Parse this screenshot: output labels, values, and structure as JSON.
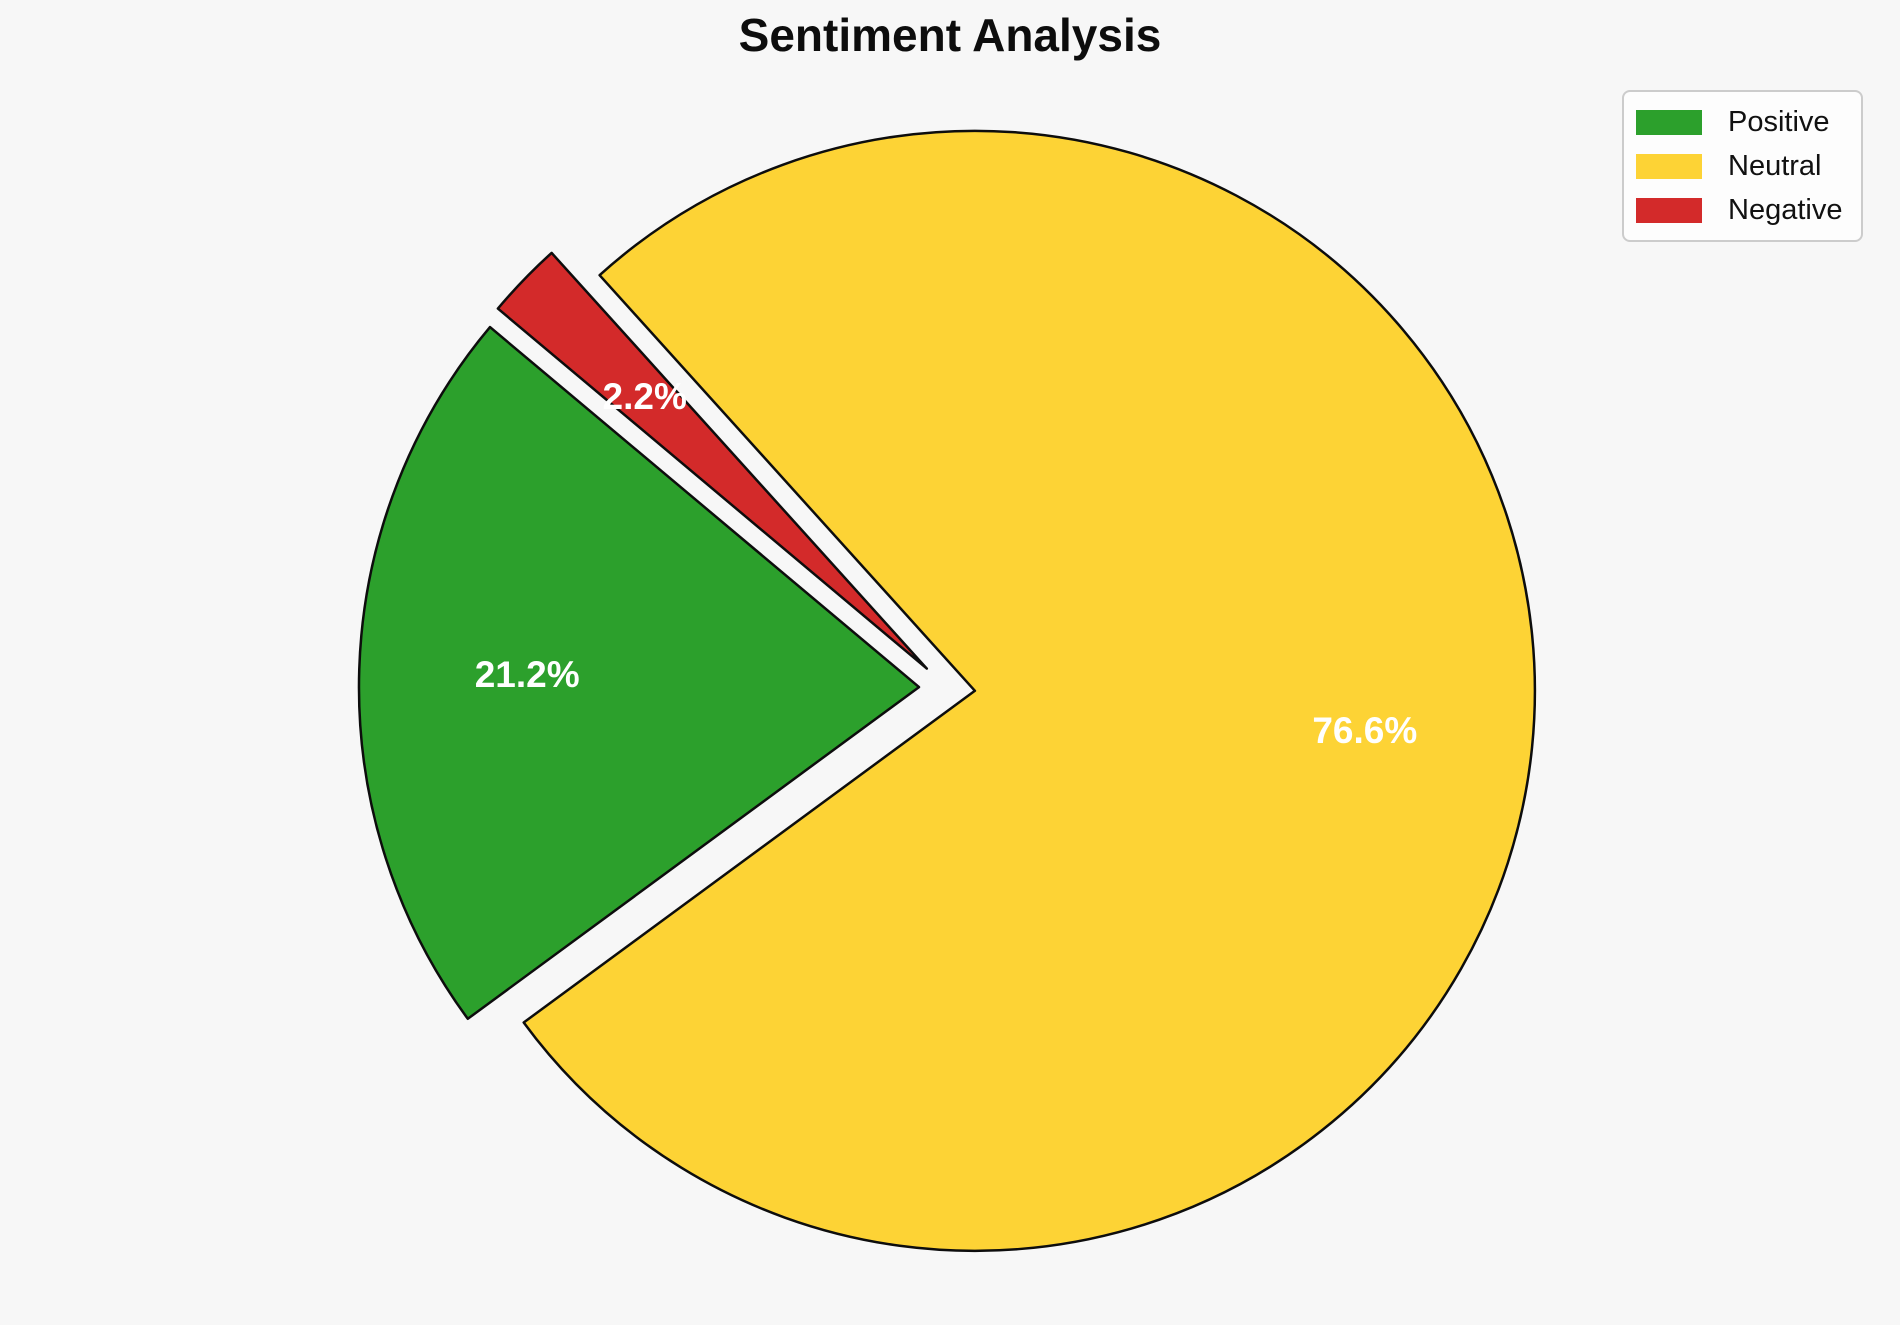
{
  "figure": {
    "title": "Sentiment Analysis",
    "background_color": "#f7f7f7",
    "title_color": "#0d0d0d"
  },
  "chart_data": {
    "type": "pie",
    "title": "Sentiment Analysis",
    "slices": [
      {
        "label": "Positive",
        "value": 21.2,
        "pct_label": "21.2%",
        "color": "#2ca02c"
      },
      {
        "label": "Neutral",
        "value": 76.6,
        "pct_label": "76.6%",
        "color": "#fdd335"
      },
      {
        "label": "Negative",
        "value": 2.2,
        "pct_label": "2.2%",
        "color": "#d32a2a"
      }
    ],
    "start_angle_deg": 140,
    "counterclockwise": true,
    "explode": 0.05,
    "pct_distance": 0.7,
    "edge_color": "#0d0d0d",
    "pct_label_color": "#ffffff",
    "legend_position": "upper right",
    "legend_labels": [
      "Positive",
      "Neutral",
      "Negative"
    ]
  }
}
